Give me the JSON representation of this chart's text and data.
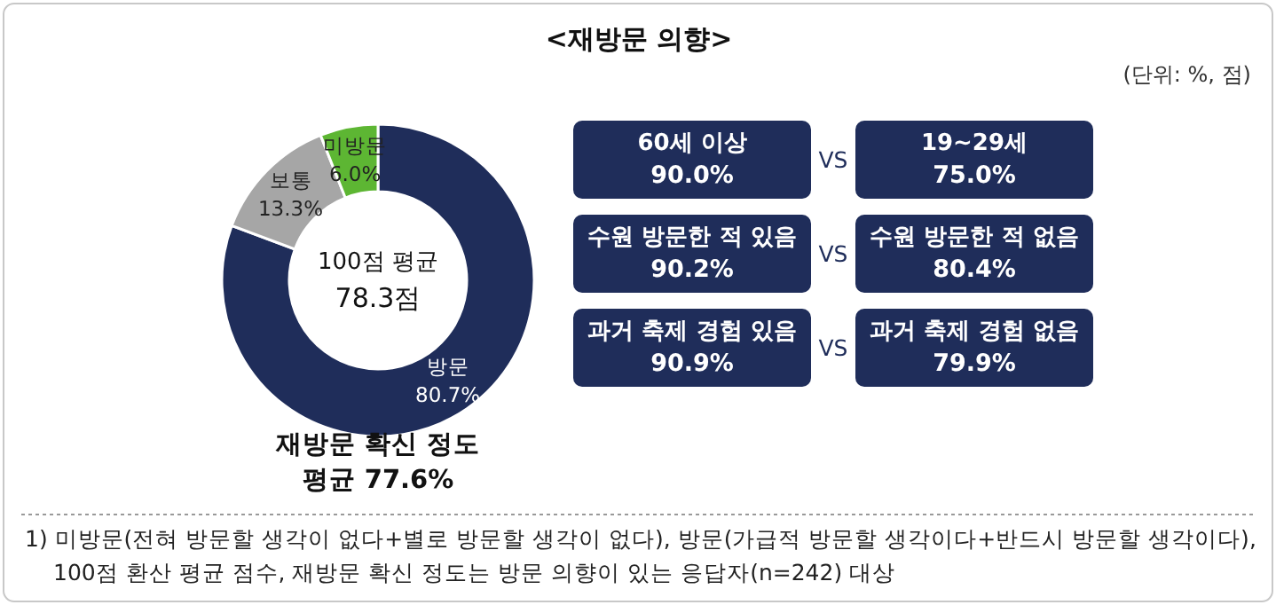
{
  "chart_data": [
    {
      "type": "donut",
      "title": "<재방문 의향>",
      "categories": [
        "방문",
        "보통",
        "미방문"
      ],
      "values": [
        80.7,
        13.3,
        6.0
      ],
      "value_labels": [
        "80.7%",
        "13.3%",
        "6.0%"
      ],
      "colors": [
        "#1f2d5a",
        "#a6a6a6",
        "#5db633"
      ],
      "annotations": [
        "(단위: %, 점)",
        "100점 평균",
        "78.3점",
        "재방문 확신 정도",
        "평균 77.6%",
        "1) 미방문(전혀 방문할 생각이 없다+별로 방문할 생각이 없다), 방문(가급적 방문할 생각이다+반드시 방문할 생각이다), 100점 환산 평균 점수, 재방문 확신 정도는 방문 의향이 있는 응답자(n=242) 대상"
      ]
    },
    {
      "type": "other",
      "annotations": [
        "60세 이상",
        "90.0%",
        "VS",
        "19~29세",
        "75.0%",
        "수원 방문한 적 있음",
        "90.2%",
        "VS",
        "수원 방문한 적 없음",
        "80.4%",
        "과거 축제 경험 있음",
        "90.9%",
        "VS",
        "과거 축제 경험 없음",
        "79.9%"
      ]
    }
  ]
}
